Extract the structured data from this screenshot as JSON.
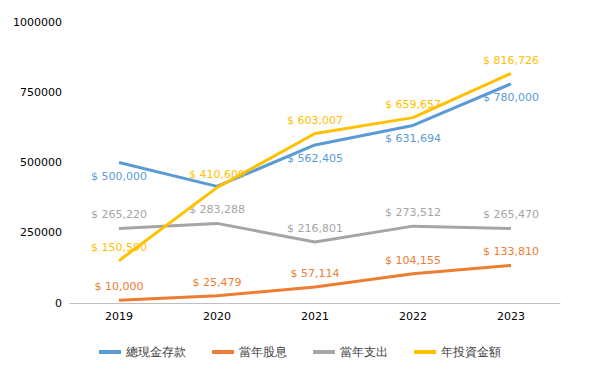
{
  "chart_data": {
    "type": "line",
    "categories": [
      "2019",
      "2020",
      "2021",
      "2022",
      "2023"
    ],
    "series": [
      {
        "name": "總現金存款",
        "color": "#5b9bd5",
        "values": [
          500000,
          415000,
          562405,
          631694,
          780000
        ],
        "value_labels": [
          "$ 500,000",
          null,
          "$ 562,405",
          "$ 631,694",
          "$ 780,000"
        ]
      },
      {
        "name": "當年股息",
        "color": "#ed7d31",
        "values": [
          10000,
          25479,
          57114,
          104155,
          133810
        ],
        "value_labels": [
          "$ 10,000",
          "$ 25,479",
          "$ 57,114",
          "$ 104,155",
          "$ 133,810"
        ]
      },
      {
        "name": "當年支出",
        "color": "#a5a5a5",
        "values": [
          265220,
          283288,
          216801,
          273512,
          265470
        ],
        "value_labels": [
          "$ 265,220",
          "$ 283,288",
          "$ 216,801",
          "$ 273,512",
          "$ 265,470"
        ]
      },
      {
        "name": "年投資金額",
        "color": "#ffc000",
        "values": [
          150590,
          410600,
          603007,
          659657,
          816726
        ],
        "value_labels": [
          "$ 150,590",
          "$ 410,600",
          "$ 603,007",
          "$ 659,657",
          "$ 816,726"
        ]
      }
    ],
    "ylim": [
      0,
      1000000
    ],
    "yticks": [
      0,
      250000,
      500000,
      750000,
      1000000
    ],
    "grid": false,
    "legend": "bottom",
    "data_labels": true
  }
}
